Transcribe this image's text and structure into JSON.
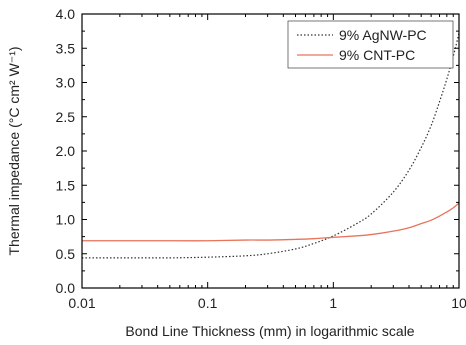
{
  "chart_data": {
    "type": "line",
    "title": "",
    "xlabel": "Bond Line Thickness (mm) in logarithmic scale",
    "ylabel": "Thermal impedance (°C cm² W⁻¹)",
    "x_scale": "log",
    "xlim": [
      0.01,
      10
    ],
    "ylim": [
      0.0,
      4.0
    ],
    "x_ticks": [
      0.01,
      0.1,
      1,
      10
    ],
    "x_tick_labels": [
      "0.01",
      "0.1",
      "1",
      "10"
    ],
    "y_ticks": [
      0.0,
      0.5,
      1.0,
      1.5,
      2.0,
      2.5,
      3.0,
      3.5,
      4.0
    ],
    "y_tick_labels": [
      "0.0",
      "0.5",
      "1.0",
      "1.5",
      "2.0",
      "2.5",
      "3.0",
      "3.5",
      "4.0"
    ],
    "grid": false,
    "legend_position": "top-right",
    "series": [
      {
        "name": "9% AgNW-PC",
        "color": "#333333",
        "line_style": "dotted",
        "x": [
          0.01,
          0.02,
          0.05,
          0.1,
          0.2,
          0.3,
          0.5,
          0.7,
          1,
          1.5,
          2,
          3,
          4,
          5,
          6,
          7,
          8,
          9,
          10
        ],
        "y": [
          0.44,
          0.44,
          0.44,
          0.45,
          0.47,
          0.5,
          0.57,
          0.65,
          0.76,
          0.93,
          1.08,
          1.4,
          1.72,
          2.05,
          2.37,
          2.72,
          3.05,
          3.38,
          3.72
        ]
      },
      {
        "name": "9% CNT-PC",
        "color": "#e8735a",
        "line_style": "solid",
        "x": [
          0.01,
          0.02,
          0.05,
          0.1,
          0.2,
          0.3,
          0.5,
          0.7,
          1,
          1.5,
          2,
          3,
          4,
          5,
          6,
          7,
          8,
          9,
          10
        ],
        "y": [
          0.69,
          0.69,
          0.69,
          0.69,
          0.7,
          0.7,
          0.71,
          0.72,
          0.74,
          0.76,
          0.78,
          0.83,
          0.88,
          0.94,
          0.99,
          1.05,
          1.11,
          1.17,
          1.24
        ]
      }
    ]
  }
}
